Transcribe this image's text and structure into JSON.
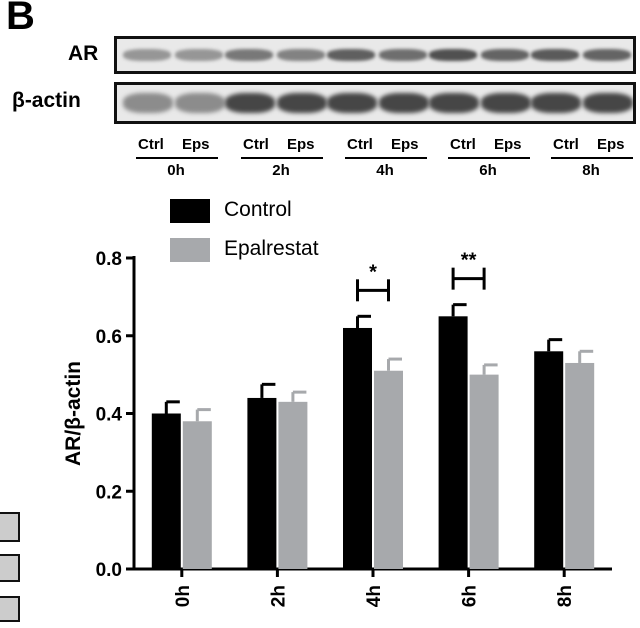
{
  "panel_letter": "B",
  "blot": {
    "rows": [
      {
        "label": "AR"
      },
      {
        "label": "β-actin"
      }
    ],
    "lane_labels": [
      "Ctrl",
      "Eps"
    ],
    "time_points": [
      "0h",
      "2h",
      "4h",
      "6h",
      "8h"
    ]
  },
  "colors": {
    "control": "#000000",
    "epalrestat": "#a7a9ac"
  },
  "chart_data": {
    "type": "bar",
    "categories": [
      "0h",
      "2h",
      "4h",
      "6h",
      "8h"
    ],
    "series": [
      {
        "name": "Control",
        "values": [
          0.4,
          0.44,
          0.62,
          0.65,
          0.56
        ],
        "errors": [
          0.03,
          0.035,
          0.03,
          0.03,
          0.03
        ]
      },
      {
        "name": "Epalrestat",
        "values": [
          0.38,
          0.43,
          0.51,
          0.5,
          0.53
        ],
        "errors": [
          0.03,
          0.025,
          0.03,
          0.025,
          0.03
        ]
      }
    ],
    "ylabel": "AR/β-actin",
    "xlabel": "",
    "ylim": [
      0,
      0.8
    ],
    "yticks": [
      "0.0",
      "0.2",
      "0.4",
      "0.6",
      "0.8"
    ],
    "legend_position": "top-left",
    "grid": false,
    "significance": [
      {
        "category": "4h",
        "label": "*"
      },
      {
        "category": "6h",
        "label": "**"
      }
    ]
  }
}
